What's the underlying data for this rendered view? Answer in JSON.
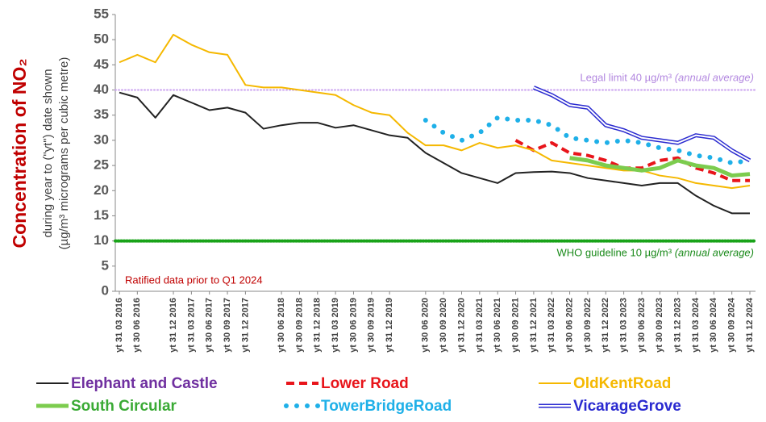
{
  "chart_data": {
    "type": "line",
    "y_title": "Concentration of NO₂",
    "y_subtitle_1": "during year to (\"yt\") date shown",
    "y_subtitle_2": "(µg/m³ micrograms per cubic metre)",
    "note": "Ratified data prior to Q1 2024",
    "reference_lines": [
      {
        "value": 40,
        "label": "Legal limit 40 µg/m³ ",
        "label_italic": "(annual average)",
        "color": "#c9a0f0",
        "text_color": "#b388e0"
      },
      {
        "value": 10,
        "label": "WHO guideline 10 µg/m³ ",
        "label_italic": "(annual average)",
        "color": "#19a319",
        "text_color": "#1a8a1a"
      }
    ],
    "categories": [
      "yt 31 03 2016",
      "yt 30 06 2016",
      null,
      "yt 31 12 2016",
      "yt 31 03 2017",
      "yt 30 06 2017",
      "yt 30 09 2017",
      "yt 31 12 2017",
      null,
      "yt 30 06 2018",
      "yt 30 09 2018",
      "yt 31 12 2018",
      "yt 31 03 2019",
      "yt 30 06 2019",
      "yt 30 09 2019",
      "yt 31 12 2019",
      null,
      "yt 30 06 2020",
      "yt 30 09 2020",
      "yt 31 12 2020",
      "yt 31 03 2021",
      "yt 30 06 2021",
      "yt 30 09 2021",
      "yt 31 12 2021",
      "yt 31 03 2022",
      "yt 30 06 2022",
      "yt 30 09 2022",
      "yt 31 12 2022",
      "yt 31 03 2023",
      "yt 30 06 2023",
      "yt 30 09 2023",
      "yt 31 12 2023",
      "yt 31 03 2024",
      "yt 30 06 2024",
      "yt 30 09 2024",
      "yt 31 12 2024"
    ],
    "series": [
      {
        "name": "Elephant and Castle",
        "color": "#222222",
        "label_color": "#7030a0",
        "style": "solid",
        "values": [
          39.5,
          38.5,
          34.5,
          39,
          37.5,
          36,
          36.5,
          35.5,
          32.3,
          33,
          33.5,
          33.5,
          32.5,
          33,
          32,
          31,
          30.5,
          27.5,
          25.5,
          23.5,
          22.5,
          21.5,
          23.5,
          23.7,
          23.8,
          23.5,
          22.5,
          22,
          21.5,
          21,
          21.5,
          21.5,
          19,
          17,
          15.5,
          15.5
        ]
      },
      {
        "name": "Lower Road",
        "color": "#e8151b",
        "label_color": "#e8151b",
        "style": "dashed",
        "values": [
          null,
          null,
          null,
          null,
          null,
          null,
          null,
          null,
          null,
          null,
          null,
          null,
          null,
          null,
          null,
          null,
          null,
          null,
          null,
          null,
          null,
          null,
          30,
          28,
          29.5,
          27.5,
          27,
          26,
          24.5,
          24.5,
          26,
          26.5,
          24.5,
          23.5,
          22,
          22
        ]
      },
      {
        "name": "OldKentRoad",
        "color": "#f5b800",
        "label_color": "#f5b800",
        "style": "solid",
        "values": [
          45.5,
          47,
          45.5,
          51,
          49,
          47.5,
          47,
          41,
          40.5,
          40.5,
          40,
          39.5,
          39,
          37,
          35.5,
          35,
          31.5,
          29,
          29,
          28,
          29.5,
          28.5,
          29,
          28,
          26,
          25.5,
          25,
          24.5,
          24,
          24,
          23,
          22.5,
          21.5,
          21,
          20.5,
          21
        ]
      },
      {
        "name": "South Circular",
        "color": "#7ccc4e",
        "label_color": "#3aaa35",
        "style": "thick",
        "values": [
          null,
          null,
          null,
          null,
          null,
          null,
          null,
          null,
          null,
          null,
          null,
          null,
          null,
          null,
          null,
          null,
          null,
          null,
          null,
          null,
          null,
          null,
          null,
          null,
          null,
          26.5,
          26,
          25,
          24.5,
          24,
          24.5,
          26,
          25,
          24.5,
          23,
          23.3
        ]
      },
      {
        "name": "TowerBridgeRoad",
        "color": "#1fb0e8",
        "label_color": "#1fb0e8",
        "style": "dotted",
        "values": [
          null,
          null,
          null,
          null,
          null,
          null,
          null,
          null,
          null,
          null,
          null,
          null,
          null,
          null,
          null,
          null,
          null,
          34,
          31.5,
          30,
          31.5,
          34.5,
          34,
          34,
          33,
          30.5,
          30,
          29.5,
          30,
          29.5,
          28.5,
          28,
          27,
          26.5,
          25.5,
          26
        ]
      },
      {
        "name": "VicarageGrove",
        "color": "#2a2ad0",
        "label_color": "#2a2ad0",
        "style": "double",
        "values": [
          null,
          null,
          null,
          null,
          null,
          null,
          null,
          null,
          null,
          null,
          null,
          null,
          null,
          null,
          null,
          null,
          null,
          null,
          null,
          null,
          null,
          null,
          null,
          40.5,
          39,
          37,
          36.5,
          33,
          32,
          30.5,
          30,
          29.5,
          31,
          30.5,
          28,
          26
        ]
      }
    ],
    "ylim": [
      0,
      55
    ],
    "yticks": [
      0,
      5,
      10,
      15,
      20,
      25,
      30,
      35,
      40,
      45,
      50,
      55
    ]
  }
}
